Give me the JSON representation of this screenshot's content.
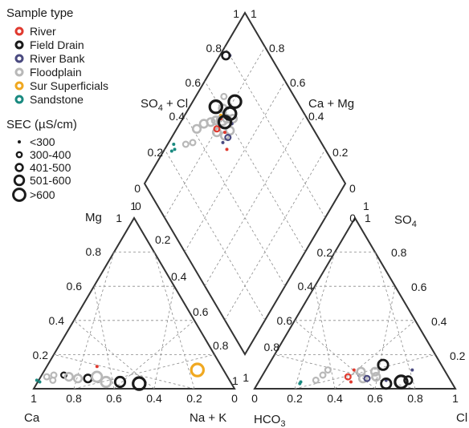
{
  "legend": {
    "sample_type_title": "Sample type",
    "sample_types": [
      {
        "label": "River",
        "color": "#e03a2f"
      },
      {
        "label": "Field Drain",
        "color": "#1a1a1a"
      },
      {
        "label": "River Bank",
        "color": "#4a4a80"
      },
      {
        "label": "Floodplain",
        "color": "#b8b8b8"
      },
      {
        "label": "Sur Superficials",
        "color": "#f0a820"
      },
      {
        "label": "Sandstone",
        "color": "#1a8a80"
      }
    ],
    "sec_title": "SEC (µS/cm)",
    "sec_classes": [
      "<300",
      "300-400",
      "401-500",
      "501-600",
      ">600"
    ]
  },
  "axis_labels": {
    "mg": "Mg",
    "ca": "Ca",
    "na_k": "Na + K",
    "so4_right": "SO4",
    "hco3": "HCO3",
    "cl": "Cl",
    "so4_cl": "SO4 + Cl",
    "ca_mg": "Ca + Mg"
  },
  "ticks": {
    "cation_bottom": [
      "1",
      "0.8",
      "0.6",
      "0.4",
      "0.2",
      "0"
    ],
    "cation_left": [
      "0.2",
      "0.4",
      "0.6",
      "0.8",
      "1"
    ],
    "cation_right": [
      "0",
      "0.2",
      "0.4",
      "0.6",
      "0.8",
      "1"
    ],
    "anion_bottom": [
      "0",
      "0.2",
      "0.4",
      "0.6",
      "0.8",
      "1"
    ],
    "anion_left": [
      "0",
      "0.2",
      "0.4",
      "0.6",
      "0.8",
      "1"
    ],
    "anion_right": [
      "0.2",
      "0.4",
      "0.6",
      "0.8",
      "1"
    ],
    "diamond_left": [
      "0",
      "0.2",
      "0.4",
      "0.6",
      "0.8",
      "1"
    ],
    "diamond_right": [
      "0",
      "0.2",
      "0.4",
      "0.6",
      "0.8",
      "1"
    ],
    "top_left": "1",
    "top_right": "1"
  },
  "chart_data": {
    "type": "scatter",
    "subtype": "piper-diagram",
    "series": [
      {
        "name": "River",
        "color": "#e03a2f"
      },
      {
        "name": "Field Drain",
        "color": "#1a1a1a"
      },
      {
        "name": "River Bank",
        "color": "#4a4a80"
      },
      {
        "name": "Floodplain",
        "color": "#b8b8b8"
      },
      {
        "name": "Sur Superficials",
        "color": "#f0a820"
      },
      {
        "name": "Sandstone",
        "color": "#1a8a80"
      }
    ],
    "sec_classes": [
      "<300",
      "300-400",
      "401-500",
      "501-600",
      ">600"
    ],
    "cation_points": [
      {
        "type": "Sandstone",
        "sec": 1,
        "ca": 0.96,
        "mg": 0.05
      },
      {
        "type": "Sandstone",
        "sec": 1,
        "ca": 0.95,
        "mg": 0.04
      },
      {
        "type": "Floodplain",
        "sec": 2,
        "ca": 0.9,
        "mg": 0.07
      },
      {
        "type": "Floodplain",
        "sec": 2,
        "ca": 0.88,
        "mg": 0.05
      },
      {
        "type": "Floodplain",
        "sec": 2,
        "ca": 0.86,
        "mg": 0.08
      },
      {
        "type": "Field Drain",
        "sec": 2,
        "ca": 0.81,
        "mg": 0.08
      },
      {
        "type": "Floodplain",
        "sec": 3,
        "ca": 0.79,
        "mg": 0.07
      },
      {
        "type": "Floodplain",
        "sec": 3,
        "ca": 0.75,
        "mg": 0.06
      },
      {
        "type": "Field Drain",
        "sec": 3,
        "ca": 0.7,
        "mg": 0.06
      },
      {
        "type": "Floodplain",
        "sec": 4,
        "ca": 0.65,
        "mg": 0.07
      },
      {
        "type": "Floodplain",
        "sec": 4,
        "ca": 0.62,
        "mg": 0.04
      },
      {
        "type": "Field Drain",
        "sec": 4,
        "ca": 0.55,
        "mg": 0.04
      },
      {
        "type": "Field Drain",
        "sec": 5,
        "ca": 0.46,
        "mg": 0.03
      },
      {
        "type": "River",
        "sec": 1,
        "ca": 0.62,
        "mg": 0.13
      },
      {
        "type": "Sur Superficials",
        "sec": 5,
        "ca": 0.13,
        "mg": 0.11
      }
    ],
    "anion_points": [
      {
        "type": "Sandstone",
        "sec": 1,
        "cl": 0.21,
        "so4": 0.04
      },
      {
        "type": "Sandstone",
        "sec": 1,
        "cl": 0.21,
        "so4": 0.03
      },
      {
        "type": "Floodplain",
        "sec": 2,
        "cl": 0.28,
        "so4": 0.05
      },
      {
        "type": "Floodplain",
        "sec": 2,
        "cl": 0.31,
        "so4": 0.11
      },
      {
        "type": "Floodplain",
        "sec": 2,
        "cl": 0.3,
        "so4": 0.08
      },
      {
        "type": "River",
        "sec": 2,
        "cl": 0.43,
        "so4": 0.07
      },
      {
        "type": "River",
        "sec": 1,
        "cl": 0.44,
        "so4": 0.11
      },
      {
        "type": "River",
        "sec": 1,
        "cl": 0.46,
        "so4": 0.04
      },
      {
        "type": "River Bank",
        "sec": 1,
        "cl": 0.48,
        "so4": 0.08
      },
      {
        "type": "Floodplain",
        "sec": 3,
        "cl": 0.48,
        "so4": 0.1
      },
      {
        "type": "Floodplain",
        "sec": 3,
        "cl": 0.51,
        "so4": 0.06
      },
      {
        "type": "River Bank",
        "sec": 2,
        "cl": 0.53,
        "so4": 0.06
      },
      {
        "type": "Floodplain",
        "sec": 3,
        "cl": 0.55,
        "so4": 0.1
      },
      {
        "type": "Field Drain",
        "sec": 4,
        "cl": 0.57,
        "so4": 0.14
      },
      {
        "type": "Floodplain",
        "sec": 3,
        "cl": 0.57,
        "so4": 0.07
      },
      {
        "type": "River Bank",
        "sec": 1,
        "cl": 0.63,
        "so4": 0.05
      },
      {
        "type": "Field Drain",
        "sec": 4,
        "cl": 0.64,
        "so4": 0.03
      },
      {
        "type": "Field Drain",
        "sec": 5,
        "cl": 0.71,
        "so4": 0.04
      },
      {
        "type": "Field Drain",
        "sec": 3,
        "cl": 0.74,
        "so4": 0.05
      },
      {
        "type": "River Bank",
        "sec": 1,
        "cl": 0.73,
        "so4": 0.11
      }
    ],
    "diamond_points": [
      {
        "type": "Sandstone",
        "sec": 1,
        "so4cl": 0.23,
        "na_k": 0.04
      },
      {
        "type": "Sandstone",
        "sec": 1,
        "so4cl": 0.26,
        "na_k": 0.03
      },
      {
        "type": "Sandstone",
        "sec": 1,
        "so4cl": 0.25,
        "na_k": 0.05
      },
      {
        "type": "Floodplain",
        "sec": 2,
        "so4cl": 0.32,
        "na_k": 0.09
      },
      {
        "type": "Floodplain",
        "sec": 2,
        "so4cl": 0.36,
        "na_k": 0.12
      },
      {
        "type": "Floodplain",
        "sec": 3,
        "so4cl": 0.42,
        "na_k": 0.1
      },
      {
        "type": "Floodplain",
        "sec": 3,
        "so4cl": 0.47,
        "na_k": 0.12
      },
      {
        "type": "Floodplain",
        "sec": 3,
        "so4cl": 0.51,
        "na_k": 0.15
      },
      {
        "type": "Floodplain",
        "sec": 3,
        "so4cl": 0.54,
        "na_k": 0.17
      },
      {
        "type": "Floodplain",
        "sec": 3,
        "so4cl": 0.51,
        "na_k": 0.21
      },
      {
        "type": "Floodplain",
        "sec": 4,
        "so4cl": 0.57,
        "na_k": 0.2
      },
      {
        "type": "Floodplain",
        "sec": 3,
        "so4cl": 0.6,
        "na_k": 0.22
      },
      {
        "type": "Floodplain",
        "sec": 3,
        "so4cl": 0.61,
        "na_k": 0.17
      },
      {
        "type": "Floodplain",
        "sec": 2,
        "so4cl": 0.65,
        "na_k": 0.14
      },
      {
        "type": "Floodplain",
        "sec": 3,
        "so4cl": 0.54,
        "na_k": 0.26
      },
      {
        "type": "Floodplain",
        "sec": 3,
        "so4cl": 0.58,
        "na_k": 0.27
      },
      {
        "type": "Floodplain",
        "sec": 3,
        "so4cl": 0.63,
        "na_k": 0.25
      },
      {
        "type": "River",
        "sec": 2,
        "so4cl": 0.52,
        "na_k": 0.2
      },
      {
        "type": "River",
        "sec": 1,
        "so4cl": 0.55,
        "na_k": 0.25
      },
      {
        "type": "River",
        "sec": 1,
        "so4cl": 0.51,
        "na_k": 0.31
      },
      {
        "type": "River",
        "sec": 1,
        "so4cl": 0.57,
        "na_k": 0.19
      },
      {
        "type": "River Bank",
        "sec": 1,
        "so4cl": 0.51,
        "na_k": 0.27
      },
      {
        "type": "River Bank",
        "sec": 2,
        "so4cl": 0.55,
        "na_k": 0.28
      },
      {
        "type": "River Bank",
        "sec": 1,
        "so4cl": 0.61,
        "na_k": 0.26
      },
      {
        "type": "River Bank",
        "sec": 1,
        "so4cl": 0.8,
        "na_k": 0.05
      },
      {
        "type": "Sur Superficials",
        "sec": 1,
        "so4cl": 0.58,
        "na_k": 0.18
      },
      {
        "type": "Field Drain",
        "sec": 3,
        "so4cl": 0.78,
        "na_k": 0.03
      },
      {
        "type": "Field Drain",
        "sec": 5,
        "so4cl": 0.58,
        "na_k": 0.13
      },
      {
        "type": "Field Drain",
        "sec": 5,
        "so4cl": 0.58,
        "na_k": 0.22
      },
      {
        "type": "Field Drain",
        "sec": 5,
        "so4cl": 0.63,
        "na_k": 0.22
      },
      {
        "type": "Field Drain",
        "sec": 5,
        "so4cl": 0.69,
        "na_k": 0.21
      }
    ]
  }
}
